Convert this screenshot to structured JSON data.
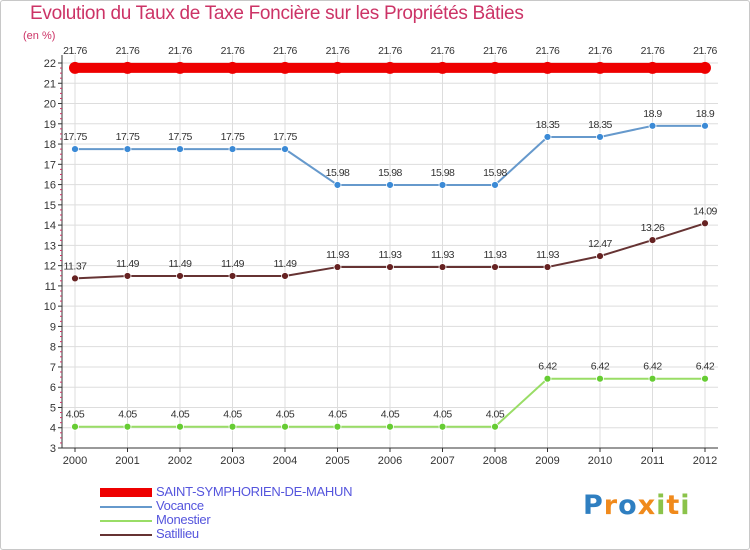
{
  "colors": {
    "title": "#cc3366",
    "legend_text": "#5555dd",
    "grid": "#dddddd",
    "axis": "#333333"
  },
  "logo": {
    "text": "Proxiti",
    "letters": [
      {
        "ch": "P",
        "color": "#2f7fc1"
      },
      {
        "ch": "r",
        "color": "#f08a1c"
      },
      {
        "ch": "o",
        "color": "#2f7fc1"
      },
      {
        "ch": "x",
        "color": "#f08a1c"
      },
      {
        "ch": "i",
        "color": "#8bc34a"
      },
      {
        "ch": "t",
        "color": "#f08a1c"
      },
      {
        "ch": "i",
        "color": "#8bc34a"
      }
    ]
  },
  "chart_data": {
    "type": "line",
    "title": "Evolution du Taux de Taxe Foncière sur les Propriétés Bâties",
    "ylabel": "(en %)",
    "xlabel": "",
    "ylim": [
      3,
      22
    ],
    "yticks": [
      3,
      4,
      5,
      6,
      7,
      8,
      9,
      10,
      11,
      12,
      13,
      14,
      15,
      16,
      17,
      18,
      19,
      20,
      21,
      22
    ],
    "grid": true,
    "legend_position": "bottom-left",
    "categories": [
      "2000",
      "2001",
      "2002",
      "2003",
      "2004",
      "2005",
      "2006",
      "2007",
      "2008",
      "2009",
      "2010",
      "2011",
      "2012"
    ],
    "series": [
      {
        "name": "SAINT-SYMPHORIEN-DE-MAHUN",
        "color": "#ee0000",
        "dot_color": "#ee0000",
        "thick": true,
        "values": [
          21.76,
          21.76,
          21.76,
          21.76,
          21.76,
          21.76,
          21.76,
          21.76,
          21.76,
          21.76,
          21.76,
          21.76,
          21.76
        ],
        "labels": [
          "21.76",
          "21.76",
          "21.76",
          "21.76",
          "21.76",
          "21.76",
          "21.76",
          "21.76",
          "21.76",
          "21.76",
          "21.76",
          "21.76",
          "21.76"
        ]
      },
      {
        "name": "Vocance",
        "color": "#6699cc",
        "dot_color": "#3b8ad6",
        "thick": false,
        "values": [
          17.75,
          17.75,
          17.75,
          17.75,
          17.75,
          15.98,
          15.98,
          15.98,
          15.98,
          18.35,
          18.35,
          18.9,
          18.9
        ],
        "labels": [
          "17.75",
          "17.75",
          "17.75",
          "17.75",
          "17.75",
          "15.98",
          "15.98",
          "15.98",
          "15.98",
          "18.35",
          "18.35",
          "18.9",
          "18.9"
        ]
      },
      {
        "name": "Monestier",
        "color": "#99dd66",
        "dot_color": "#66cc33",
        "thick": false,
        "values": [
          4.05,
          4.05,
          4.05,
          4.05,
          4.05,
          4.05,
          4.05,
          4.05,
          4.05,
          6.42,
          6.42,
          6.42,
          6.42
        ],
        "labels": [
          "4.05",
          "4.05",
          "4.05",
          "4.05",
          "4.05",
          "4.05",
          "4.05",
          "4.05",
          "4.05",
          "6.42",
          "6.42",
          "6.42",
          "6.42"
        ]
      },
      {
        "name": "Satillieu",
        "color": "#663333",
        "dot_color": "#662222",
        "thick": false,
        "values": [
          11.37,
          11.49,
          11.49,
          11.49,
          11.49,
          11.93,
          11.93,
          11.93,
          11.93,
          11.93,
          12.47,
          13.26,
          14.09
        ],
        "labels": [
          "11.37",
          "11.49",
          "11.49",
          "11.49",
          "11.49",
          "11.93",
          "11.93",
          "11.93",
          "11.93",
          "11.93",
          "12.47",
          "13.26",
          "14.09"
        ]
      }
    ]
  }
}
